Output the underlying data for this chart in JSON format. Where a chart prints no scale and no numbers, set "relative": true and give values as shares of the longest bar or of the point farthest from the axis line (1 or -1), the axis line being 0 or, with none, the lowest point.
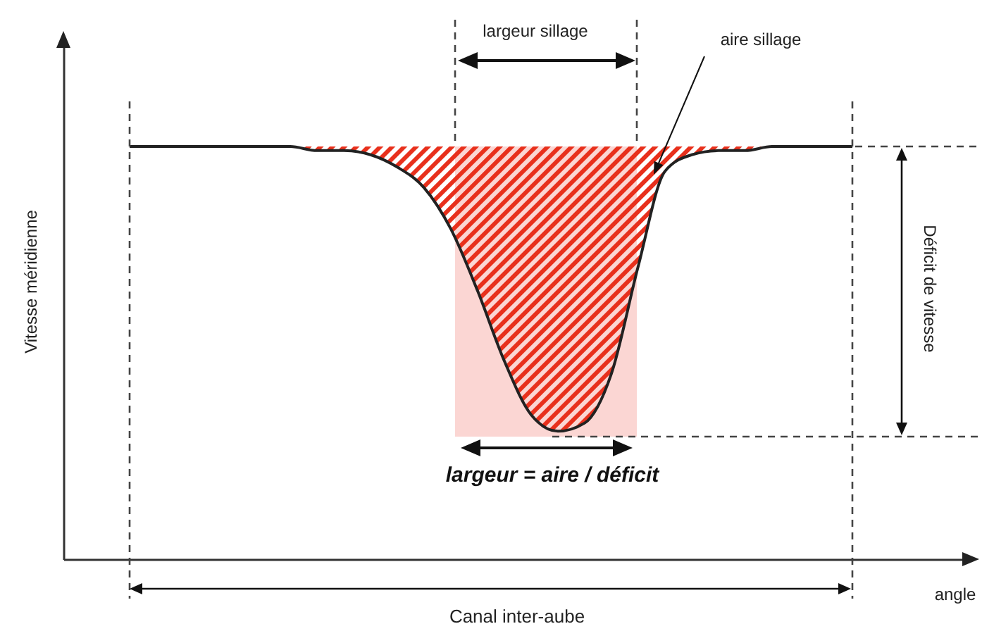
{
  "chart_data": {
    "type": "line",
    "relative": true,
    "xlabel": "angle",
    "ylabel": "Vitesse méridienne",
    "categories": [
      null,
      null,
      null,
      null,
      null,
      null,
      null,
      null,
      null,
      null,
      null,
      null,
      null,
      null,
      null,
      null,
      null,
      null,
      null,
      null,
      null,
      null,
      null,
      null,
      null,
      null,
      null,
      null
    ],
    "series": [
      {
        "color": "#222222",
        "values": [
          1.0,
          1.0,
          1.0,
          1.0,
          1.0,
          1.0,
          1.0,
          0.99,
          0.99,
          0.98,
          0.95,
          0.9,
          0.8,
          0.65,
          0.48,
          0.35,
          0.31,
          0.33,
          0.45,
          0.71,
          0.94,
          0.98,
          0.99,
          0.99,
          1.0,
          1.0,
          1.0,
          1.0
        ],
        "lower": [
          1.0,
          1.0,
          1.0,
          1.0,
          1.0,
          1.0,
          1.0,
          0.99,
          0.99,
          0.98,
          0.95,
          0.9,
          0.8,
          0.65,
          0.48,
          0.35,
          0.31,
          0.33,
          0.45,
          0.71,
          0.94,
          0.98,
          0.99,
          0.99,
          1.0,
          1.0,
          1.0,
          1.0
        ],
        "upper": [
          1.0,
          1.0,
          1.0,
          1.0,
          1.0,
          1.0,
          1.0,
          1.0,
          1.0,
          1.0,
          1.0,
          1.0,
          1.0,
          1.0,
          1.0,
          1.0,
          1.0,
          1.0,
          1.0,
          1.0,
          1.0,
          1.0,
          1.0,
          1.0,
          1.0,
          1.0,
          1.0,
          1.0
        ]
      }
    ],
    "annotations": [
      "largeur sillage",
      "aire sillage",
      "Déficit de vitesse",
      "largeur = aire / déficit",
      "Canal inter-aube"
    ]
  }
}
